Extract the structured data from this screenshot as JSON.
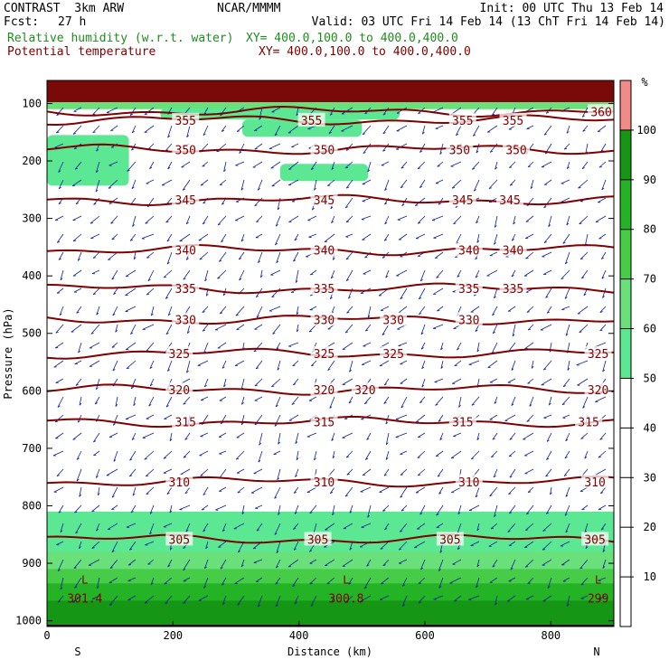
{
  "header": {
    "title": "CONTRAST  3km ARW",
    "source": "NCAR/MMMM",
    "init": "Init: 00 UTC Thu 13 Feb 14",
    "fcst_label": "Fcst:",
    "fcst_value": "27 h",
    "valid": "Valid: 03 UTC Fri 14 Feb 14 (13 ChT Fri 14 Feb 14)",
    "field1_name": "Relative humidity (w.r.t. water)",
    "field1_xy": "XY= 400.0,100.0 to 400.0,400.0",
    "field2_name": "Potential temperature",
    "field2_xy": "XY= 400.0,100.0 to 400.0,400.0"
  },
  "colors": {
    "rh": "#1e8c1e",
    "theta": "#800000",
    "wind": "#0b1f9e"
  },
  "chart_data": {
    "type": "cross-section",
    "xlabel": "Distance (km)",
    "ylabel": "Pressure (hPa)",
    "xlim": [
      0,
      900
    ],
    "ylim": [
      1010,
      60
    ],
    "x_ticks": [
      0,
      200,
      400,
      600,
      800
    ],
    "y_ticks": [
      100,
      200,
      300,
      400,
      500,
      600,
      700,
      800,
      900,
      1000
    ],
    "x_end_labels": {
      "left": "S",
      "right": "N"
    },
    "theta_contours": [
      {
        "value": 360,
        "p": 114,
        "labels": [
          [
            880,
            "360"
          ]
        ]
      },
      {
        "value": 355,
        "p": 129,
        "labels": [
          [
            220,
            "355"
          ],
          [
            420,
            "355"
          ],
          [
            660,
            "355"
          ],
          [
            740,
            "355"
          ]
        ]
      },
      {
        "value": 350,
        "p": 180,
        "labels": [
          [
            220,
            "350"
          ],
          [
            440,
            "350"
          ],
          [
            655,
            "350"
          ],
          [
            745,
            "350"
          ]
        ]
      },
      {
        "value": 345,
        "p": 268,
        "labels": [
          [
            220,
            "345"
          ],
          [
            440,
            "345"
          ],
          [
            660,
            "345"
          ],
          [
            735,
            "345"
          ]
        ]
      },
      {
        "value": 340,
        "p": 355,
        "labels": [
          [
            220,
            "340"
          ],
          [
            440,
            "340"
          ],
          [
            670,
            "340"
          ],
          [
            740,
            "340"
          ]
        ]
      },
      {
        "value": 335,
        "p": 422,
        "labels": [
          [
            220,
            "335"
          ],
          [
            440,
            "335"
          ],
          [
            670,
            "335"
          ],
          [
            740,
            "335"
          ]
        ]
      },
      {
        "value": 330,
        "p": 476,
        "labels": [
          [
            220,
            "330"
          ],
          [
            440,
            "330"
          ],
          [
            550,
            "330"
          ],
          [
            670,
            "330"
          ]
        ]
      },
      {
        "value": 325,
        "p": 535,
        "labels": [
          [
            210,
            "325"
          ],
          [
            440,
            "325"
          ],
          [
            550,
            "325"
          ],
          [
            875,
            "325"
          ]
        ]
      },
      {
        "value": 320,
        "p": 598,
        "labels": [
          [
            210,
            "320"
          ],
          [
            440,
            "320"
          ],
          [
            505,
            "320"
          ],
          [
            875,
            "320"
          ]
        ]
      },
      {
        "value": 315,
        "p": 654,
        "labels": [
          [
            220,
            "315"
          ],
          [
            440,
            "315"
          ],
          [
            660,
            "315"
          ],
          [
            860,
            "315"
          ]
        ]
      },
      {
        "value": 310,
        "p": 758,
        "labels": [
          [
            210,
            "310"
          ],
          [
            440,
            "310"
          ],
          [
            670,
            "310"
          ],
          [
            870,
            "310"
          ]
        ]
      },
      {
        "value": 305,
        "p": 858,
        "labels": [
          [
            210,
            "305"
          ],
          [
            430,
            "305"
          ],
          [
            640,
            "305"
          ],
          [
            870,
            "305"
          ]
        ]
      }
    ],
    "point_labels": [
      {
        "x": 60,
        "p": 968,
        "label": "301.4"
      },
      {
        "x": 475,
        "p": 968,
        "label": "300.8"
      },
      {
        "x": 875,
        "p": 968,
        "label": "299"
      }
    ],
    "low_markers": [
      {
        "x": 60,
        "p": 935,
        "label": "L"
      },
      {
        "x": 475,
        "p": 935,
        "label": "L"
      },
      {
        "x": 875,
        "p": 935,
        "label": "L"
      }
    ],
    "colorbar": {
      "unit": "%",
      "ticks": [
        10,
        20,
        30,
        40,
        50,
        60,
        70,
        80,
        90,
        100
      ],
      "bins": [
        {
          "from": 50,
          "to": 60,
          "color": "#5ce893"
        },
        {
          "from": 60,
          "to": 70,
          "color": "#69e07a"
        },
        {
          "from": 70,
          "to": 80,
          "color": "#47cc47"
        },
        {
          "from": 80,
          "to": 90,
          "color": "#24b324"
        },
        {
          "from": 90,
          "to": 100,
          "color": "#159615"
        },
        {
          "from": 100,
          "to": 110,
          "color": "#f28a8a"
        }
      ]
    },
    "rh_regions": [
      {
        "x": [
          0,
          900
        ],
        "p_top": 55,
        "p_bot": 98,
        "bin": 100
      },
      {
        "x": [
          0,
          900
        ],
        "p_top": 98,
        "p_bot": 110,
        "bin": 60
      },
      {
        "x": [
          180,
          560
        ],
        "p_top": 108,
        "p_bot": 128,
        "bin": 50
      },
      {
        "x": [
          310,
          500
        ],
        "p_top": 128,
        "p_bot": 158,
        "bin": 50
      },
      {
        "x": [
          0,
          130
        ],
        "p_top": 155,
        "p_bot": 243,
        "bin": 50
      },
      {
        "x": [
          370,
          510
        ],
        "p_top": 205,
        "p_bot": 235,
        "bin": 50
      },
      {
        "x": [
          0,
          900
        ],
        "p_top": 810,
        "p_bot": 1010,
        "bin": 50
      },
      {
        "x": [
          0,
          900
        ],
        "p_top": 880,
        "p_bot": 1010,
        "bin": 60
      },
      {
        "x": [
          0,
          900
        ],
        "p_top": 910,
        "p_bot": 1010,
        "bin": 70
      },
      {
        "x": [
          0,
          900
        ],
        "p_top": 935,
        "p_bot": 1010,
        "bin": 80
      },
      {
        "x": [
          0,
          900
        ],
        "p_top": 965,
        "p_bot": 1010,
        "bin": 90
      }
    ]
  }
}
